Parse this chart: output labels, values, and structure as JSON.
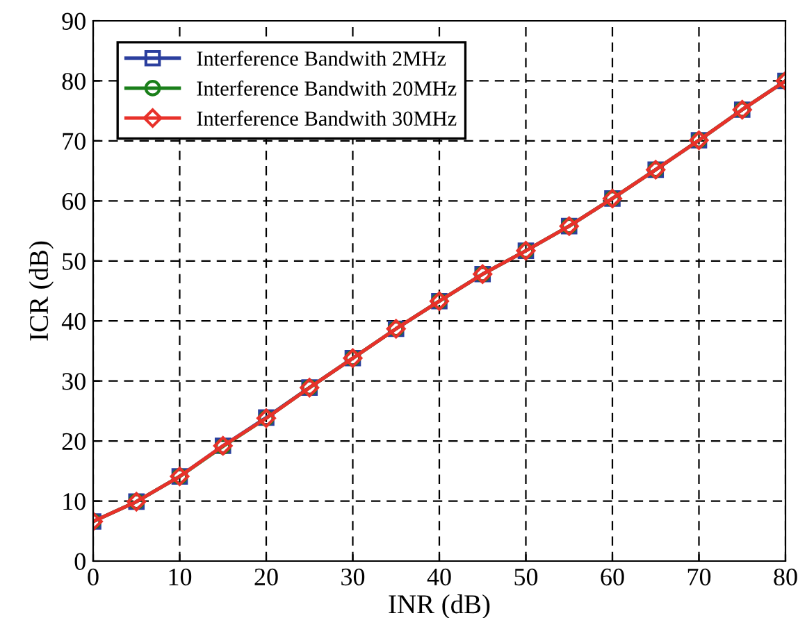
{
  "chart_data": {
    "type": "line",
    "xlabel": "INR (dB)",
    "ylabel": "ICR (dB)",
    "x": [
      0,
      5,
      10,
      15,
      20,
      25,
      30,
      35,
      40,
      45,
      50,
      55,
      60,
      65,
      70,
      75,
      80
    ],
    "series": [
      {
        "name": "Interference Bandwith 2MHz",
        "color": "#2b3f9e",
        "marker": "square",
        "values": [
          6.6,
          9.9,
          14.1,
          19.2,
          23.9,
          28.9,
          33.8,
          38.7,
          43.3,
          47.8,
          51.7,
          55.8,
          60.4,
          65.2,
          70.1,
          75.2,
          80
        ]
      },
      {
        "name": "Interference Bandwith 20MHz",
        "color": "#1a7f1a",
        "marker": "circle",
        "values": [
          6.6,
          9.9,
          14.1,
          19.1,
          23.8,
          28.9,
          33.8,
          38.7,
          43.3,
          47.8,
          51.7,
          55.8,
          60.4,
          65.2,
          70.1,
          75.2,
          80
        ]
      },
      {
        "name": "Interference Bandwith 30MHz",
        "color": "#e8312a",
        "marker": "diamond",
        "values": [
          6.6,
          9.9,
          14.1,
          19.2,
          23.8,
          28.9,
          33.8,
          38.7,
          43.3,
          47.8,
          51.7,
          55.8,
          60.4,
          65.2,
          70.1,
          75.2,
          80
        ]
      }
    ],
    "xlim": [
      0,
      80
    ],
    "ylim": [
      0,
      90
    ],
    "xticks": [
      0,
      10,
      20,
      30,
      40,
      50,
      60,
      70,
      80
    ],
    "yticks": [
      0,
      10,
      20,
      30,
      40,
      50,
      60,
      70,
      80,
      90
    ],
    "grid": true,
    "legend": "top left",
    "line_style": "solid"
  }
}
